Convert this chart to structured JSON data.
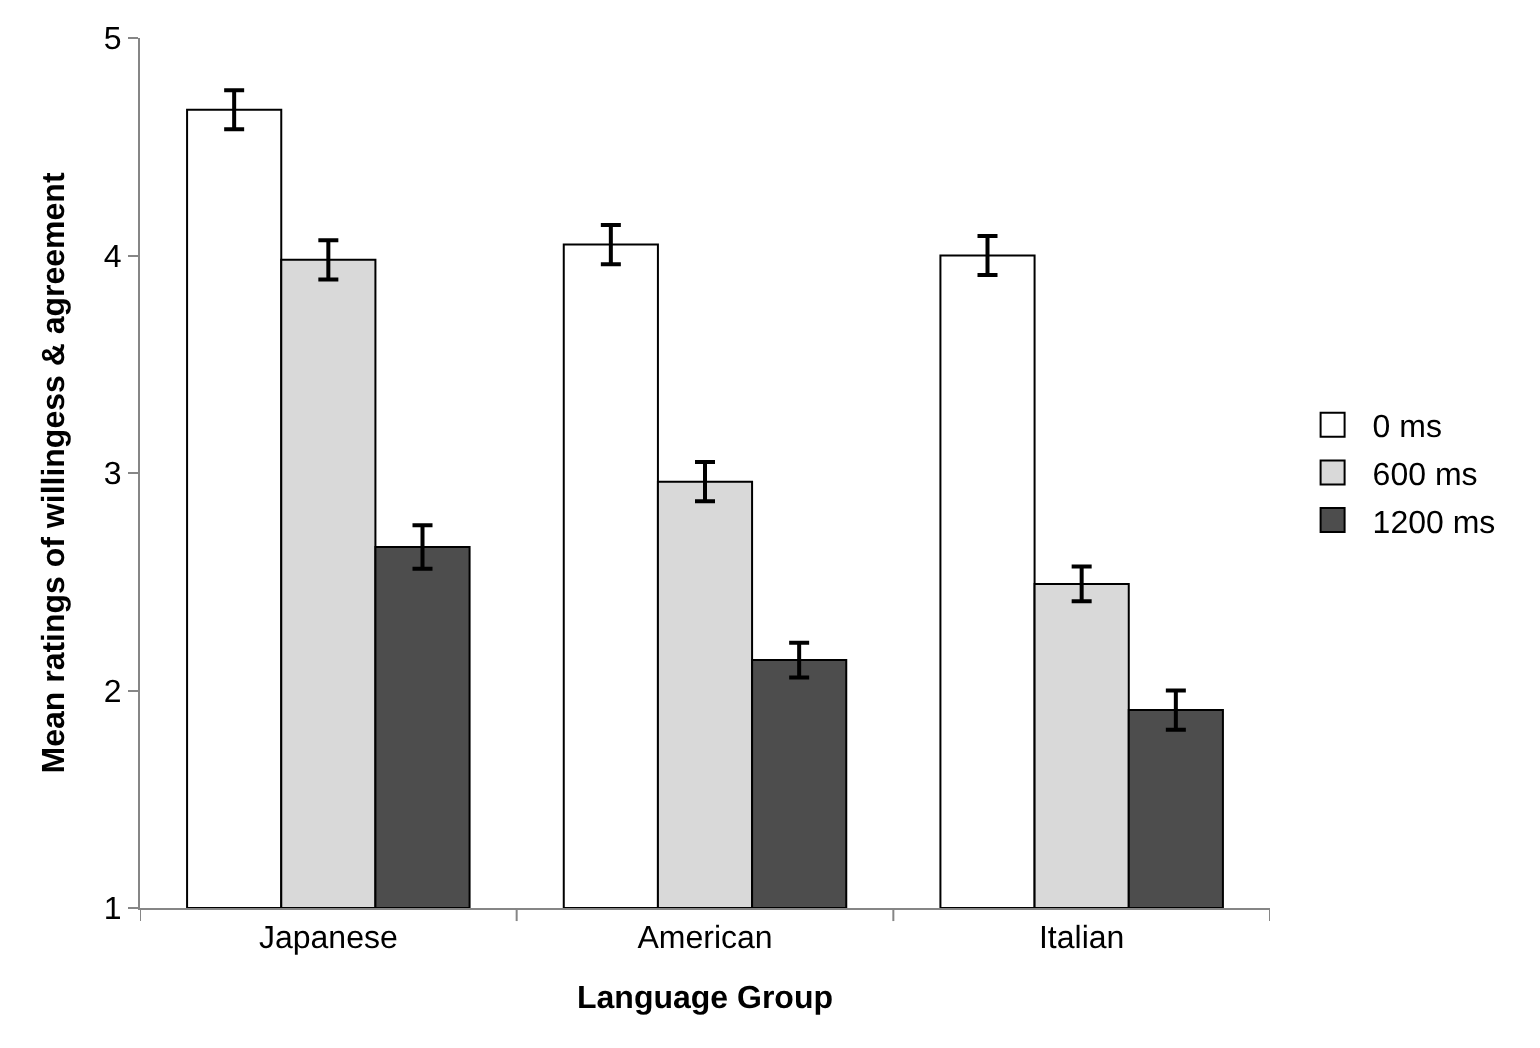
{
  "chart_data": {
    "type": "bar",
    "xlabel": "Language Group",
    "ylabel": "Mean ratings of willingess & agreement",
    "categories": [
      "Japanese",
      "American",
      "Italian"
    ],
    "series": [
      {
        "name": "0 ms",
        "color": "#ffffff",
        "values": [
          4.67,
          4.05,
          4.0
        ],
        "errors": [
          0.09,
          0.09,
          0.09
        ]
      },
      {
        "name": "600 ms",
        "color": "#d9d9d9",
        "values": [
          3.98,
          2.96,
          2.49
        ],
        "errors": [
          0.09,
          0.09,
          0.08
        ]
      },
      {
        "name": "1200 ms",
        "color": "#4d4d4d",
        "values": [
          2.66,
          2.14,
          1.91
        ],
        "errors": [
          0.1,
          0.08,
          0.09
        ]
      }
    ],
    "ylim": [
      1,
      5
    ],
    "yticks": [
      1,
      2,
      3,
      4,
      5
    ],
    "legend": "right"
  }
}
